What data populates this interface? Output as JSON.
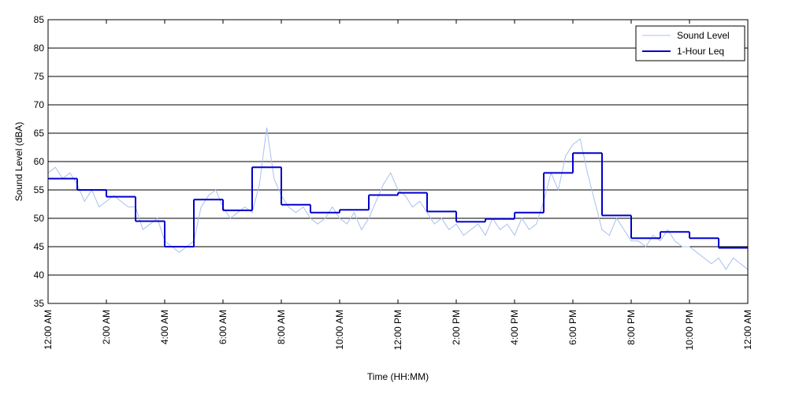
{
  "chart_data": {
    "type": "line",
    "x_label": "Time (HH:MM)",
    "y_label": "Sound Level (dBA)",
    "xlim": [
      0,
      24
    ],
    "ylim": [
      35,
      85
    ],
    "yticks": [
      35,
      40,
      45,
      50,
      55,
      60,
      65,
      70,
      75,
      80,
      85
    ],
    "xticks": [
      {
        "value": 0,
        "label": "12:00 AM"
      },
      {
        "value": 2,
        "label": "2:00 AM"
      },
      {
        "value": 4,
        "label": "4:00 AM"
      },
      {
        "value": 6,
        "label": "6:00 AM"
      },
      {
        "value": 8,
        "label": "8:00 AM"
      },
      {
        "value": 10,
        "label": "10:00 AM"
      },
      {
        "value": 12,
        "label": "12:00 PM"
      },
      {
        "value": 14,
        "label": "2:00 PM"
      },
      {
        "value": 16,
        "label": "4:00 PM"
      },
      {
        "value": 18,
        "label": "6:00 PM"
      },
      {
        "value": 20,
        "label": "8:00 PM"
      },
      {
        "value": 22,
        "label": "10:00 PM"
      },
      {
        "value": 24,
        "label": "12:00 AM"
      }
    ],
    "grid": true,
    "legend": "upper right",
    "series": [
      {
        "name": "Sound Level",
        "color": "#a8c0f0",
        "step": false,
        "x": [
          0,
          0.25,
          0.5,
          0.75,
          1,
          1.25,
          1.5,
          1.75,
          2,
          2.25,
          2.5,
          2.75,
          3,
          3.25,
          3.5,
          3.75,
          4,
          4.25,
          4.5,
          4.75,
          5,
          5.25,
          5.5,
          5.75,
          6,
          6.25,
          6.5,
          6.75,
          7,
          7.25,
          7.5,
          7.75,
          8,
          8.25,
          8.5,
          8.75,
          9,
          9.25,
          9.5,
          9.75,
          10,
          10.25,
          10.5,
          10.75,
          11,
          11.25,
          11.5,
          11.75,
          12,
          12.25,
          12.5,
          12.75,
          13,
          13.25,
          13.5,
          13.75,
          14,
          14.25,
          14.5,
          14.75,
          15,
          15.25,
          15.5,
          15.75,
          16,
          16.25,
          16.5,
          16.75,
          17,
          17.25,
          17.5,
          17.75,
          18,
          18.25,
          18.5,
          18.75,
          19,
          19.25,
          19.5,
          19.75,
          20,
          20.25,
          20.5,
          20.75,
          21,
          21.25,
          21.5,
          21.75,
          22,
          22.25,
          22.5,
          22.75,
          23,
          23.25,
          23.5,
          23.75,
          24
        ],
        "values": [
          58,
          59,
          57,
          58,
          56,
          53,
          55,
          52,
          53,
          54,
          53,
          52,
          52,
          48,
          49,
          50,
          46,
          45,
          44,
          45,
          46,
          52,
          54,
          55,
          52,
          50,
          51,
          52,
          51,
          56,
          66,
          57,
          54,
          52,
          51,
          52,
          50,
          49,
          50,
          52,
          50,
          49,
          51,
          48,
          50,
          53,
          56,
          58,
          55,
          54,
          52,
          53,
          51,
          49,
          50,
          48,
          49,
          47,
          48,
          49,
          47,
          50,
          48,
          49,
          47,
          50,
          48,
          49,
          53,
          58,
          55,
          61,
          63,
          64,
          58,
          53,
          48,
          47,
          50,
          48,
          46,
          46,
          45,
          47,
          46,
          48,
          46,
          45,
          45,
          44,
          43,
          42,
          43,
          41,
          43,
          42,
          41
        ]
      },
      {
        "name": "1-Hour Leq",
        "color": "#0000cc",
        "step": true,
        "x": [
          0,
          1,
          2,
          3,
          4,
          5,
          6,
          7,
          8,
          9,
          10,
          11,
          12,
          13,
          14,
          15,
          16,
          17,
          18,
          19,
          20,
          21,
          22,
          23
        ],
        "values": [
          57,
          55,
          53.8,
          49.5,
          45,
          53.3,
          51.4,
          59,
          52.4,
          51,
          51.5,
          54.1,
          54.5,
          51.2,
          49.4,
          49.9,
          51,
          58,
          61.5,
          50.5,
          46.5,
          47.6,
          46.5,
          44.8
        ]
      }
    ]
  }
}
